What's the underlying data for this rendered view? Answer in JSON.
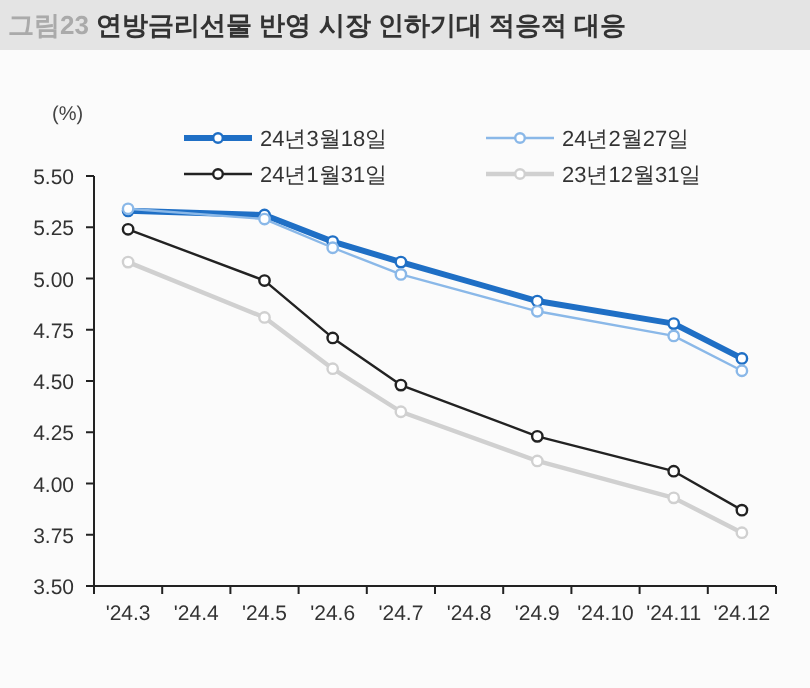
{
  "chart_data": {
    "type": "line",
    "title": "그림23 연방금리선물 반영 시장 인하기대 적응적 대응",
    "ylabel": "(%)",
    "categories": [
      "'24.3",
      "'24.4",
      "'24.5",
      "'24.6",
      "'24.7",
      "'24.8",
      "'24.9",
      "'24.10",
      "'24.11",
      "'24.12"
    ],
    "series": [
      {
        "name": "24년3월18일",
        "color": "#1f6fc5",
        "x": [
          "'24.3",
          "'24.5",
          "'24.6",
          "'24.7",
          "'24.9",
          "'24.11",
          "'24.12"
        ],
        "values": [
          5.33,
          5.31,
          5.18,
          5.08,
          4.89,
          4.78,
          4.61
        ]
      },
      {
        "name": "24년2월27일",
        "color": "#8ab8e8",
        "x": [
          "'24.3",
          "'24.5",
          "'24.6",
          "'24.7",
          "'24.9",
          "'24.11",
          "'24.12"
        ],
        "values": [
          5.34,
          5.29,
          5.15,
          5.02,
          4.84,
          4.72,
          4.55
        ]
      },
      {
        "name": "24년1월31일",
        "color": "#222222",
        "x": [
          "'24.3",
          "'24.5",
          "'24.6",
          "'24.7",
          "'24.9",
          "'24.11",
          "'24.12"
        ],
        "values": [
          5.24,
          4.99,
          4.71,
          4.48,
          4.23,
          4.06,
          3.87
        ]
      },
      {
        "name": "23년12월31일",
        "color": "#d0d0d0",
        "x": [
          "'24.3",
          "'24.5",
          "'24.6",
          "'24.7",
          "'24.9",
          "'24.11",
          "'24.12"
        ],
        "values": [
          5.08,
          4.81,
          4.56,
          4.35,
          4.11,
          3.93,
          3.76
        ]
      }
    ],
    "ylim": [
      3.5,
      5.5
    ],
    "yticks": [
      {
        "value": 3.5,
        "label": "3.50"
      },
      {
        "value": 3.75,
        "label": "3.75"
      },
      {
        "value": 4.0,
        "label": "4.00"
      },
      {
        "value": 4.25,
        "label": "4.25"
      },
      {
        "value": 4.5,
        "label": "4.50"
      },
      {
        "value": 4.75,
        "label": "4.75"
      },
      {
        "value": 5.0,
        "label": "5.00"
      },
      {
        "value": 5.25,
        "label": "5.25"
      },
      {
        "value": 5.5,
        "label": "5.50"
      }
    ],
    "legend": "top",
    "marker": "circle"
  }
}
